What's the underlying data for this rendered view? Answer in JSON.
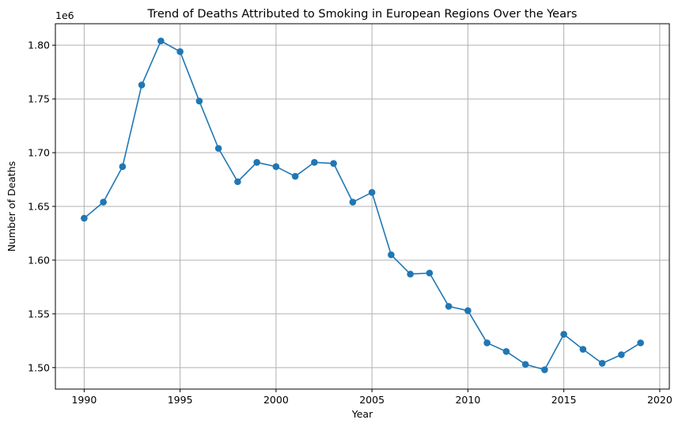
{
  "chart_data": {
    "type": "line",
    "title": "Trend of Deaths Attributed to Smoking in European Regions Over the Years",
    "xlabel": "Year",
    "ylabel": "Number of Deaths",
    "y_offset_label": "1e6",
    "xlim": [
      1988.5,
      2020.5
    ],
    "ylim": [
      1.48,
      1.82
    ],
    "x_ticks": [
      1990,
      1995,
      2000,
      2005,
      2010,
      2015,
      2020
    ],
    "y_ticks": [
      1.5,
      1.55,
      1.6,
      1.65,
      1.7,
      1.75,
      1.8
    ],
    "y_tick_labels": [
      "1.50",
      "1.55",
      "1.60",
      "1.65",
      "1.70",
      "1.75",
      "1.80"
    ],
    "grid": true,
    "legend": "none",
    "colors": {
      "line": "#1f77b4",
      "grid": "#b0b0b0",
      "axis": "#000000"
    },
    "series": [
      {
        "x": [
          1990,
          1991,
          1992,
          1993,
          1994,
          1995,
          1996,
          1997,
          1998,
          1999,
          2000,
          2001,
          2002,
          2003,
          2004,
          2005,
          2006,
          2007,
          2008,
          2009,
          2010,
          2011,
          2012,
          2013,
          2014,
          2015,
          2016,
          2017,
          2018,
          2019
        ],
        "values": [
          1.639,
          1.654,
          1.687,
          1.763,
          1.804,
          1.794,
          1.748,
          1.704,
          1.673,
          1.691,
          1.687,
          1.678,
          1.691,
          1.69,
          1.654,
          1.663,
          1.605,
          1.587,
          1.588,
          1.557,
          1.553,
          1.523,
          1.515,
          1.503,
          1.498,
          1.531,
          1.517,
          1.504,
          1.512,
          1.523
        ]
      }
    ]
  }
}
